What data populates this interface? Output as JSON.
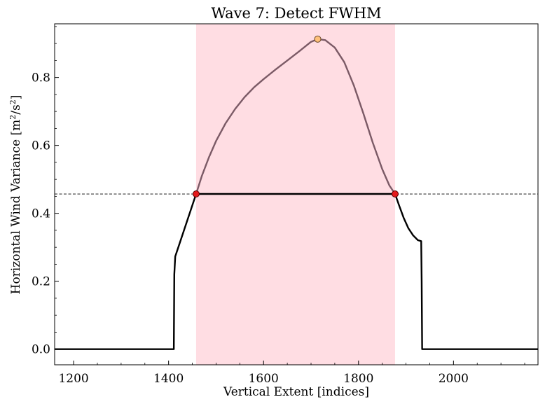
{
  "chart_data": {
    "type": "line",
    "title": "Wave 7: Detect FWHM",
    "xlabel": "Vertical Extent [indices]",
    "ylabel_main": "Horizontal Wind Variance [m",
    "ylabel_mid": "/s",
    "ylabel_sup": "2",
    "xlim": [
      1160,
      2178
    ],
    "ylim": [
      -0.046,
      0.958
    ],
    "xticks": [
      {
        "value": 1200,
        "label": "1200"
      },
      {
        "value": 1400,
        "label": "1400"
      },
      {
        "value": 1600,
        "label": "1600"
      },
      {
        "value": 1800,
        "label": "1800"
      },
      {
        "value": 2000,
        "label": "2000"
      }
    ],
    "xminor_step": 50,
    "yticks": [
      {
        "value": 0.0,
        "label": "0.0"
      },
      {
        "value": 0.2,
        "label": "0.2"
      },
      {
        "value": 0.4,
        "label": "0.4"
      },
      {
        "value": 0.6,
        "label": "0.6"
      },
      {
        "value": 0.8,
        "label": "0.8"
      }
    ],
    "yminor_step": 0.05,
    "half_max": 0.457,
    "fwhm_region": {
      "x_start": 1458,
      "x_end": 1877,
      "color": "#ffdde3"
    },
    "peak": {
      "x": 1714,
      "y": 0.913,
      "color": "#ffc07a"
    },
    "fwhm_points": [
      {
        "x": 1458,
        "y": 0.457,
        "color": "#e41a1c"
      },
      {
        "x": 1877,
        "y": 0.457,
        "color": "#e41a1c"
      }
    ],
    "series": [
      {
        "color": "#000000",
        "x": [
          1160,
          1411,
          1412,
          1414,
          1458,
          1877,
          1885,
          1895,
          1905,
          1915,
          1925,
          1932,
          1933,
          1934,
          2178
        ],
        "y": [
          0.0,
          0.0,
          0.22,
          0.273,
          0.457,
          0.457,
          0.425,
          0.387,
          0.356,
          0.335,
          0.321,
          0.318,
          0.2,
          0.0,
          0.0
        ]
      },
      {
        "color": "#7b5a66",
        "x": [
          1458,
          1470,
          1485,
          1500,
          1520,
          1540,
          1560,
          1580,
          1600,
          1625,
          1650,
          1675,
          1700,
          1714,
          1730,
          1750,
          1770,
          1790,
          1810,
          1830,
          1850,
          1865,
          1877
        ],
        "y": [
          0.457,
          0.51,
          0.565,
          0.613,
          0.665,
          0.707,
          0.742,
          0.771,
          0.795,
          0.823,
          0.85,
          0.877,
          0.905,
          0.913,
          0.91,
          0.888,
          0.845,
          0.777,
          0.695,
          0.608,
          0.53,
          0.482,
          0.457
        ]
      }
    ]
  }
}
